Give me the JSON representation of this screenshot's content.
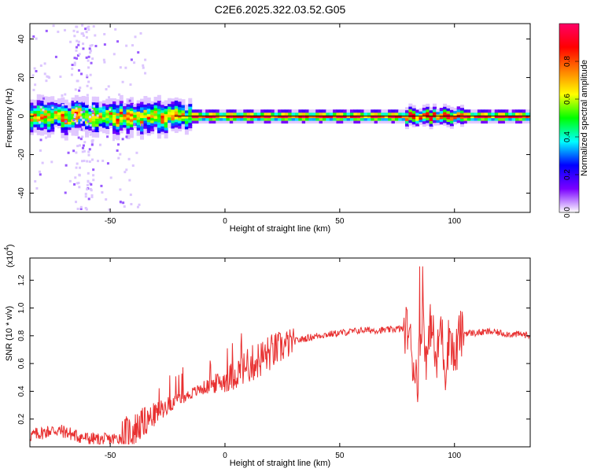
{
  "title": "C2E6.2025.322.03.52.G05",
  "chart_data": [
    {
      "type": "heatmap",
      "title": "C2E6.2025.322.03.52.G05",
      "xlabel": "Height of straight line (km)",
      "ylabel": "Frequency (Hz)",
      "xlim": [
        -85,
        133
      ],
      "ylim": [
        -50,
        48
      ],
      "xticks": [
        -50,
        0,
        50,
        100
      ],
      "yticks": [
        -40,
        -20,
        0,
        20,
        40
      ],
      "grid": false,
      "ridge_frequency_hz": 0,
      "colorbar": {
        "label": "Normalized spectral amplitude",
        "range": [
          0,
          1
        ],
        "ticks": [
          0.0,
          0.2,
          0.4,
          0.6,
          0.8
        ],
        "tick_labels": [
          "0.0",
          "0.2",
          "0.4",
          "0.6",
          "0.8"
        ],
        "colormap": [
          "#ffffff",
          "#7a00ff",
          "#0000ff",
          "#00ffff",
          "#00ff00",
          "#ffff00",
          "#ff7f00",
          "#ff0000",
          "#ff0066"
        ]
      }
    },
    {
      "type": "line",
      "xlabel": "Height of straight line (km)",
      "ylabel": "SNR (10 * v/v)",
      "yscale_note": "(x10",
      "yscale_exponent": "4",
      "xlim": [
        -85,
        133
      ],
      "ylim": [
        0,
        1.36
      ],
      "xticks": [
        -50,
        0,
        50,
        100
      ],
      "yticks": [
        0.2,
        0.4,
        0.6,
        0.8,
        1.0,
        1.2
      ],
      "ytick_labels": [
        "0.2",
        "0.4",
        "0.6",
        "0.8",
        "1.0",
        "1.2"
      ],
      "grid": false,
      "series": [
        {
          "color": "#e83030",
          "x": [
            -85,
            -80,
            -75,
            -70,
            -65,
            -60,
            -55,
            -50,
            -45,
            -40,
            -35,
            -30,
            -25,
            -20,
            -15,
            -10,
            -5,
            0,
            5,
            10,
            15,
            20,
            25,
            30,
            35,
            40,
            45,
            50,
            55,
            60,
            65,
            70,
            75,
            80,
            82,
            84,
            86,
            88,
            90,
            92,
            94,
            96,
            98,
            100,
            102,
            104,
            110,
            115,
            120,
            125,
            130,
            133
          ],
          "y": [
            0.08,
            0.1,
            0.12,
            0.11,
            0.08,
            0.06,
            0.05,
            0.05,
            0.07,
            0.12,
            0.18,
            0.24,
            0.3,
            0.34,
            0.38,
            0.42,
            0.45,
            0.48,
            0.53,
            0.58,
            0.63,
            0.68,
            0.72,
            0.76,
            0.78,
            0.8,
            0.81,
            0.82,
            0.83,
            0.84,
            0.84,
            0.84,
            0.85,
            0.85,
            0.6,
            0.5,
            1.0,
            0.6,
            0.95,
            0.55,
            0.9,
            0.55,
            0.85,
            0.6,
            0.8,
            0.82,
            0.82,
            0.83,
            0.82,
            0.81,
            0.81,
            0.8
          ]
        }
      ]
    }
  ]
}
